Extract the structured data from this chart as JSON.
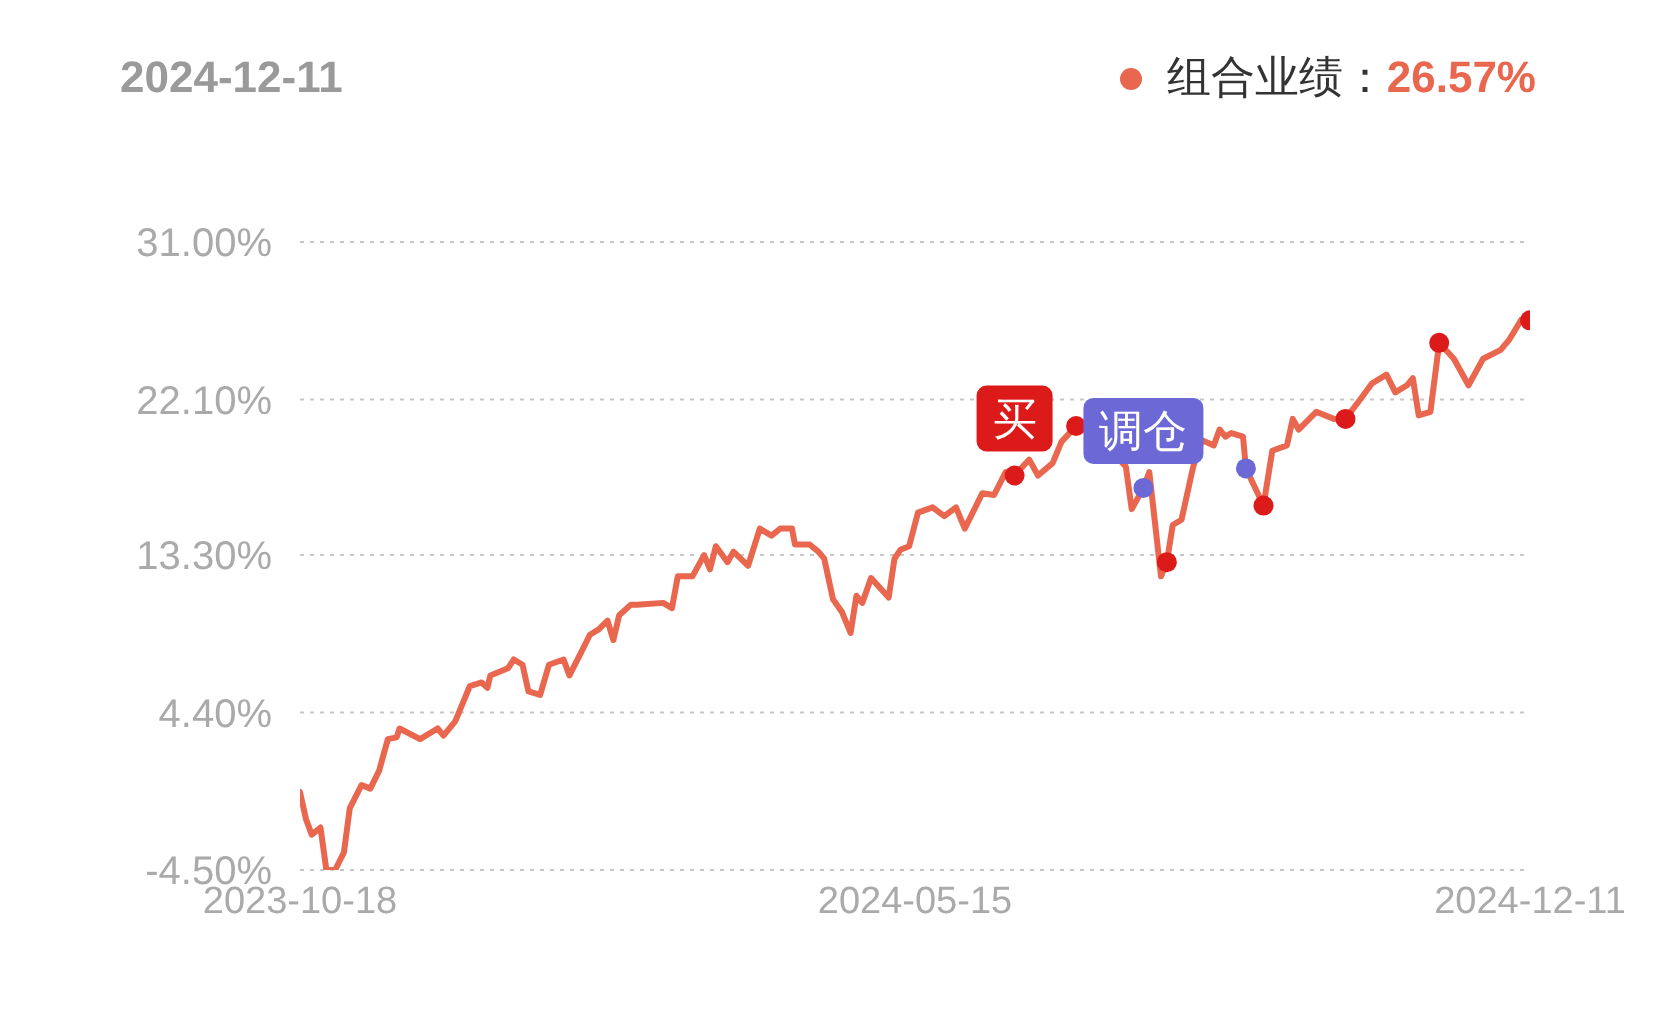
{
  "chart_data": {
    "type": "line",
    "title": "2024-12-11",
    "xlim": [
      "2023-10-18",
      "2024-12-11"
    ],
    "xticks": [
      "2023-10-18",
      "2024-05-15",
      "2024-12-11"
    ],
    "ylim": [
      -4.5,
      31
    ],
    "yticks": [
      {
        "value": -4.5,
        "label": "-4.50%"
      },
      {
        "value": 4.4,
        "label": "4.40%"
      },
      {
        "value": 13.3,
        "label": "13.30%"
      },
      {
        "value": 22.1,
        "label": "22.10%"
      },
      {
        "value": 31,
        "label": "31.00%"
      }
    ],
    "grid": "y",
    "legend": "top right",
    "marker": "none",
    "line_style": "solid",
    "annotations": [
      {
        "text": "买",
        "x": "2024-06-18",
        "y": 17.8
      },
      {
        "text": "调仓",
        "x": "2024-08-01",
        "y": 17.1
      },
      "26.57%"
    ],
    "series": [
      {
        "name": "组合业绩：",
        "color": "#e8674e",
        "x": [
          "2023-10-18",
          "2023-10-20",
          "2023-10-22",
          "2023-10-25",
          "2023-10-27",
          "2023-10-30",
          "2023-11-02",
          "2023-11-04",
          "2023-11-08",
          "2023-11-11",
          "2023-11-14",
          "2023-11-17",
          "2023-11-20",
          "2023-11-21",
          "2023-11-28",
          "2023-12-04",
          "2023-12-06",
          "2023-12-10",
          "2023-12-15",
          "2023-12-19",
          "2023-12-21",
          "2023-12-22",
          "2023-12-28",
          "2023-12-30",
          "2024-01-02",
          "2024-01-04",
          "2024-01-08",
          "2024-01-11",
          "2024-01-16",
          "2024-01-18",
          "2024-01-22",
          "2024-01-25",
          "2024-01-28",
          "2024-01-31",
          "2024-02-02",
          "2024-02-04",
          "2024-02-08",
          "2024-02-10",
          "2024-02-19",
          "2024-02-22",
          "2024-02-24",
          "2024-02-29",
          "2024-03-04",
          "2024-03-06",
          "2024-03-08",
          "2024-03-12",
          "2024-03-14",
          "2024-03-19",
          "2024-03-23",
          "2024-03-27",
          "2024-03-30",
          "2024-04-03",
          "2024-04-04",
          "2024-04-09",
          "2024-04-12",
          "2024-04-14",
          "2024-04-17",
          "2024-04-20",
          "2024-04-23",
          "2024-04-25",
          "2024-04-27",
          "2024-04-30",
          "2024-05-06",
          "2024-05-08",
          "2024-05-10",
          "2024-05-13",
          "2024-05-16",
          "2024-05-21",
          "2024-05-25",
          "2024-05-29",
          "2024-06-01",
          "2024-06-07",
          "2024-06-11",
          "2024-06-15",
          "2024-06-18",
          "2024-06-23",
          "2024-06-26",
          "2024-07-01",
          "2024-07-04",
          "2024-07-09",
          "2024-07-12",
          "2024-07-18",
          "2024-07-23",
          "2024-07-26",
          "2024-07-28",
          "2024-08-01",
          "2024-08-03",
          "2024-08-07",
          "2024-08-09",
          "2024-08-11",
          "2024-08-14",
          "2024-08-18",
          "2024-08-21",
          "2024-08-25",
          "2024-08-27",
          "2024-08-29",
          "2024-08-31",
          "2024-09-04",
          "2024-09-05",
          "2024-09-11",
          "2024-09-14",
          "2024-09-19",
          "2024-09-21",
          "2024-09-23",
          "2024-09-29",
          "2024-10-05",
          "2024-10-09",
          "2024-10-14",
          "2024-10-18",
          "2024-10-23",
          "2024-10-26",
          "2024-10-30",
          "2024-11-01",
          "2024-11-03",
          "2024-11-07",
          "2024-11-10",
          "2024-11-15",
          "2024-11-20",
          "2024-11-25",
          "2024-12-01",
          "2024-12-04",
          "2024-12-08",
          "2024-12-11"
        ],
        "values": [
          -0.1,
          -1.6,
          -2.5,
          -2.1,
          -4.5,
          -4.5,
          -3.5,
          -1.0,
          0.3,
          0.1,
          1.1,
          2.9,
          3.0,
          3.5,
          2.9,
          3.5,
          3.1,
          3.9,
          5.9,
          6.1,
          5.8,
          6.5,
          6.9,
          7.4,
          7.1,
          5.6,
          5.4,
          7.1,
          7.4,
          6.5,
          7.8,
          8.8,
          9.1,
          9.6,
          8.5,
          9.9,
          10.5,
          10.5,
          10.6,
          10.3,
          12.1,
          12.1,
          13.3,
          12.5,
          13.8,
          12.9,
          13.5,
          12.7,
          14.8,
          14.4,
          14.8,
          14.8,
          13.9,
          13.9,
          13.5,
          13.1,
          10.8,
          10.1,
          8.9,
          11.0,
          10.6,
          12.0,
          10.9,
          13.1,
          13.6,
          13.8,
          15.7,
          16.0,
          15.5,
          16.0,
          14.8,
          16.8,
          16.7,
          18.0,
          17.8,
          18.7,
          17.8,
          18.5,
          19.7,
          20.6,
          20.8,
          null,
          null,
          18.3,
          15.9,
          17.1,
          18.0,
          12.1,
          12.9,
          15.0,
          15.3,
          18.3,
          19.8,
          19.5,
          20.4,
          20.0,
          20.2,
          20.0,
          18.2,
          16.1,
          19.2,
          19.5,
          21.0,
          20.4,
          21.4,
          21.0,
          21.0,
          22.1,
          23.0,
          23.5,
          22.5,
          22.9,
          23.3,
          21.2,
          21.4,
          25.3,
          24.4,
          22.9,
          24.4,
          24.9,
          25.5,
          26.6,
          26.57
        ]
      },
      {
        "color": "#dd1a1a",
        "type": "scatter",
        "marker": "circle",
        "x": [
          "2024-06-18",
          "2024-07-09",
          "2024-08-09",
          "2024-09-11",
          "2024-10-09",
          "2024-11-10",
          "2024-12-11"
        ],
        "values": [
          17.8,
          20.6,
          12.9,
          16.1,
          21.0,
          25.3,
          26.57
        ]
      },
      {
        "color": "#6c69d6",
        "type": "scatter",
        "marker": "circle",
        "x": [
          "2024-08-01",
          "2024-09-05"
        ],
        "values": [
          17.1,
          18.2
        ]
      }
    ]
  }
}
